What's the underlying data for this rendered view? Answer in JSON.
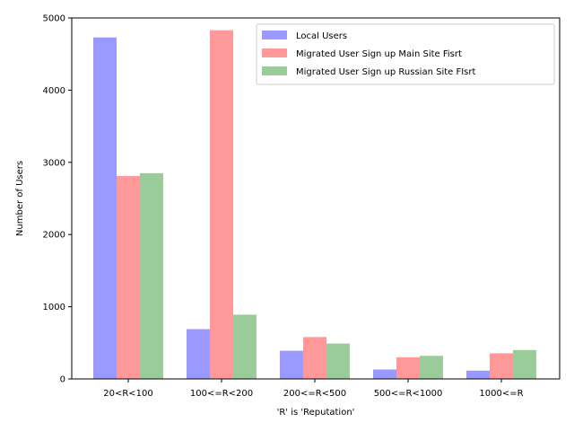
{
  "chart_data": {
    "type": "bar",
    "title": "",
    "xlabel": "'R' is 'Reputation'",
    "ylabel": "Number of Users",
    "categories": [
      "20<R<100",
      "100<=R<200",
      "200<=R<500",
      "500<=R<1000",
      "1000<=R"
    ],
    "ylim": [
      0,
      5000
    ],
    "yticks": [
      0,
      1000,
      2000,
      3000,
      4000,
      5000
    ],
    "grid": false,
    "legend_position": "top-right",
    "series": [
      {
        "name": "Local Users",
        "color": "#9999ff",
        "values": [
          4730,
          690,
          390,
          130,
          115
        ]
      },
      {
        "name": "Migrated User Sign up Main Site Fisrt",
        "color": "#ff9999",
        "values": [
          2810,
          4830,
          580,
          300,
          355
        ]
      },
      {
        "name": "Migrated User Sign up Russian Site FIsrt",
        "color": "#99cc99",
        "values": [
          2850,
          890,
          490,
          320,
          400
        ]
      }
    ]
  }
}
